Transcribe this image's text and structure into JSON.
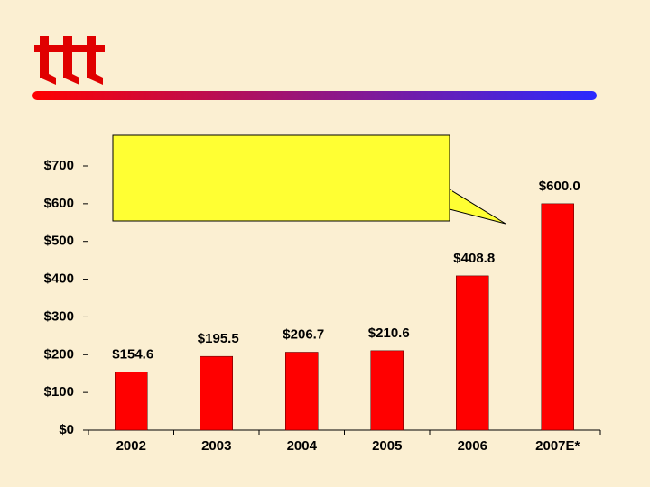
{
  "chart_data": {
    "type": "bar",
    "categories": [
      "2002",
      "2003",
      "2004",
      "2005",
      "2006",
      "2007E*"
    ],
    "values": [
      154.6,
      195.5,
      206.7,
      210.6,
      408.8,
      600.0
    ],
    "value_labels": [
      "$154.6",
      "$195.5",
      "$206.7",
      "$210.6",
      "$408.8",
      "$600.0"
    ],
    "color": "#ff0000",
    "ylim": [
      0,
      700
    ],
    "yticks": [
      {
        "value": 0,
        "label": "$0"
      },
      {
        "value": 100,
        "label": "$100"
      },
      {
        "value": 200,
        "label": "$200"
      },
      {
        "value": 300,
        "label": "$300"
      },
      {
        "value": 400,
        "label": "$400"
      },
      {
        "value": 500,
        "label": "$500"
      },
      {
        "value": 600,
        "label": "$600"
      },
      {
        "value": 700,
        "label": "$700"
      }
    ]
  }
}
